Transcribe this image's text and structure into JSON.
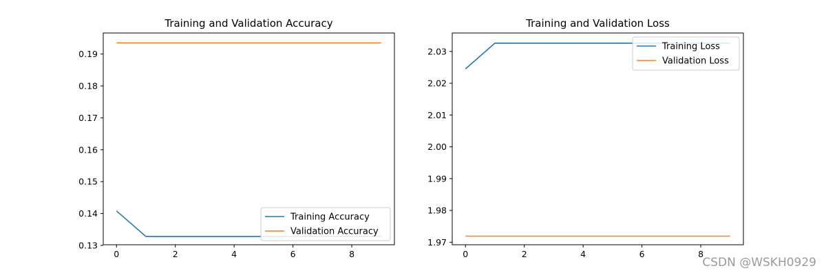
{
  "chart_data": [
    {
      "type": "line",
      "title": "Training and Validation Accuracy",
      "xlabel": "",
      "ylabel": "",
      "x": [
        0,
        1,
        2,
        3,
        4,
        5,
        6,
        7,
        8,
        9
      ],
      "xlim": [
        -0.45,
        9.45
      ],
      "ylim": [
        0.1302,
        0.1966
      ],
      "x_ticks": [
        0,
        2,
        4,
        6,
        8
      ],
      "y_ticks": [
        0.13,
        0.14,
        0.15,
        0.16,
        0.17,
        0.18,
        0.19
      ],
      "y_tick_labels": [
        "0.13",
        "0.14",
        "0.15",
        "0.16",
        "0.17",
        "0.18",
        "0.19"
      ],
      "grid": false,
      "legend_position": "lower-right",
      "series": [
        {
          "name": "Training Accuracy",
          "color": "#1f77b4",
          "values": [
            0.1408,
            0.1328,
            0.1328,
            0.1328,
            0.1328,
            0.1328,
            0.1328,
            0.1328,
            0.1328,
            0.1328
          ]
        },
        {
          "name": "Validation Accuracy",
          "color": "#ff7f0e",
          "values": [
            0.1935,
            0.1935,
            0.1935,
            0.1935,
            0.1935,
            0.1935,
            0.1935,
            0.1935,
            0.1935,
            0.1935
          ]
        }
      ]
    },
    {
      "type": "line",
      "title": "Training and Validation Loss",
      "xlabel": "",
      "ylabel": "",
      "x": [
        0,
        1,
        2,
        3,
        4,
        5,
        6,
        7,
        8,
        9
      ],
      "xlim": [
        -0.45,
        9.45
      ],
      "ylim": [
        1.9692,
        2.0358
      ],
      "x_ticks": [
        0,
        2,
        4,
        6,
        8
      ],
      "y_ticks": [
        1.97,
        1.98,
        1.99,
        2.0,
        2.01,
        2.02,
        2.03
      ],
      "y_tick_labels": [
        "1.97",
        "1.98",
        "1.99",
        "2.00",
        "2.01",
        "2.02",
        "2.03"
      ],
      "grid": false,
      "legend_position": "upper-right",
      "series": [
        {
          "name": "Training Loss",
          "color": "#1f77b4",
          "values": [
            2.0245,
            2.0326,
            2.0326,
            2.0326,
            2.0326,
            2.0326,
            2.0326,
            2.0326,
            2.0326,
            2.0326
          ]
        },
        {
          "name": "Validation Loss",
          "color": "#ff7f0e",
          "values": [
            1.9719,
            1.9719,
            1.9719,
            1.9719,
            1.9719,
            1.9719,
            1.9719,
            1.9719,
            1.9719,
            1.9719
          ]
        }
      ]
    }
  ],
  "watermark": "CSDN @WSKH0929"
}
